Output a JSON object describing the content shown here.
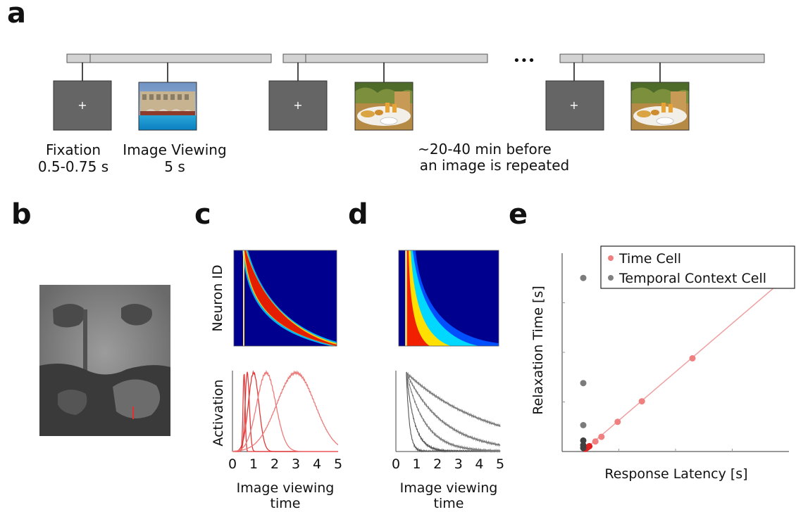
{
  "panel_labels": {
    "a": "a",
    "b": "b",
    "c": "c",
    "d": "d",
    "e": "e"
  },
  "panel_a": {
    "fixation_label": "Fixation",
    "fixation_duration": "0.5-0.75 s",
    "viewing_label": "Image Viewing",
    "viewing_duration": "5 s",
    "repeat_note_line1": "~20-40 min before",
    "repeat_note_line2": "an image is repeated",
    "ellipsis": "•••",
    "fixation_symbol": "+"
  },
  "panel_c": {
    "heatmap_ylabel": "Neuron ID",
    "lines_ylabel": "Activation",
    "xlabel_line1": "Image viewing",
    "xlabel_line2": "time",
    "xticks": [
      "0",
      "1",
      "2",
      "3",
      "4",
      "5"
    ]
  },
  "panel_d": {
    "xlabel_line1": "Image viewing",
    "xlabel_line2": "time",
    "xticks": [
      "0",
      "1",
      "2",
      "3",
      "4",
      "5"
    ]
  },
  "chart_data": [
    {
      "type": "line",
      "panel": "c",
      "xlim": [
        0,
        5
      ],
      "x_unit": "s",
      "series": [
        {
          "peak_time": 0.55,
          "width": 0.05
        },
        {
          "peak_time": 0.7,
          "width": 0.1
        },
        {
          "peak_time": 1.0,
          "width": 0.25
        },
        {
          "peak_time": 1.6,
          "width": 0.45
        },
        {
          "peak_time": 3.0,
          "width": 0.9
        }
      ]
    },
    {
      "type": "line",
      "panel": "d",
      "xlim": [
        0,
        5
      ],
      "x_unit": "s",
      "onset": 0.5,
      "series": [
        {
          "decay_tau": 0.15
        },
        {
          "decay_tau": 0.4
        },
        {
          "decay_tau": 0.9
        },
        {
          "decay_tau": 1.8
        },
        {
          "decay_tau": 4.0
        }
      ]
    },
    {
      "type": "scatter",
      "panel": "e",
      "xlabel": "Response Latency [s]",
      "ylabel": "Relaxation Time [s]",
      "xlim": [
        0,
        5
      ],
      "ylim": [
        0,
        4.2
      ],
      "legend_position": "top-right",
      "series": [
        {
          "name": "Time Cell",
          "color": "#f07f7f",
          "points": [
            [
              0.05,
              0.04
            ],
            [
              0.1,
              0.07
            ],
            [
              0.15,
              0.1
            ],
            [
              0.3,
              0.2
            ],
            [
              0.45,
              0.3
            ],
            [
              0.85,
              0.62
            ],
            [
              1.45,
              1.06
            ],
            [
              2.7,
              1.98
            ]
          ]
        },
        {
          "name": "Temporal Context Cell",
          "color": "#808080",
          "points": [
            [
              0,
              3.7
            ],
            [
              0,
              1.45
            ],
            [
              0,
              0.55
            ],
            [
              0,
              0.22
            ],
            [
              0,
              0.12
            ],
            [
              0,
              0.06
            ]
          ]
        }
      ],
      "fit_line": {
        "color": "#f0a0a0",
        "from": [
          0,
          0
        ],
        "to": [
          5,
          3.7
        ]
      }
    }
  ]
}
